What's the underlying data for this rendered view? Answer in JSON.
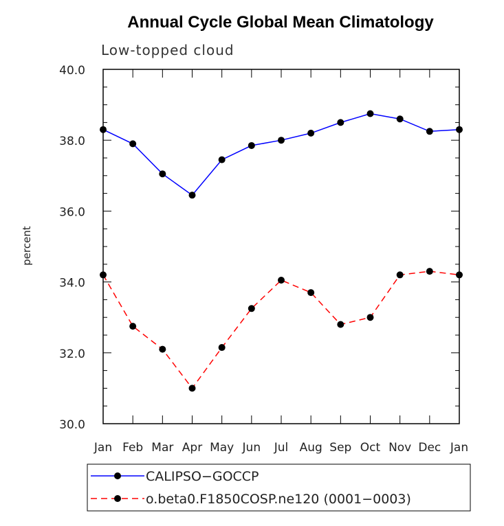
{
  "chart_data": {
    "type": "line",
    "title": "Annual Cycle Global Mean Climatology",
    "subtitle": "Low-topped cloud",
    "ylabel": "percent",
    "xlabel": "",
    "categories": [
      "Jan",
      "Feb",
      "Mar",
      "Apr",
      "May",
      "Jun",
      "Jul",
      "Aug",
      "Sep",
      "Oct",
      "Nov",
      "Dec",
      "Jan"
    ],
    "ylim": [
      30.0,
      40.0
    ],
    "yticks": [
      "30.0",
      "32.0",
      "34.0",
      "36.0",
      "38.0",
      "40.0"
    ],
    "ytick_values": [
      30,
      32,
      34,
      36,
      38,
      40
    ],
    "grid": false,
    "legend_position": "bottom",
    "series": [
      {
        "name": "CALIPSO−GOCCP",
        "color": "#0000ff",
        "dash": "solid",
        "values": [
          38.3,
          37.9,
          37.05,
          36.45,
          37.45,
          37.85,
          38.0,
          38.2,
          38.5,
          38.75,
          38.6,
          38.25,
          38.3
        ]
      },
      {
        "name": "o.beta0.F1850COSP.ne120 (0001−0003)",
        "color": "#ff0000",
        "dash": "dashed",
        "values": [
          34.2,
          32.75,
          32.1,
          31.0,
          32.15,
          33.25,
          34.05,
          33.7,
          32.8,
          33.0,
          34.2,
          34.3,
          34.2
        ]
      }
    ]
  }
}
